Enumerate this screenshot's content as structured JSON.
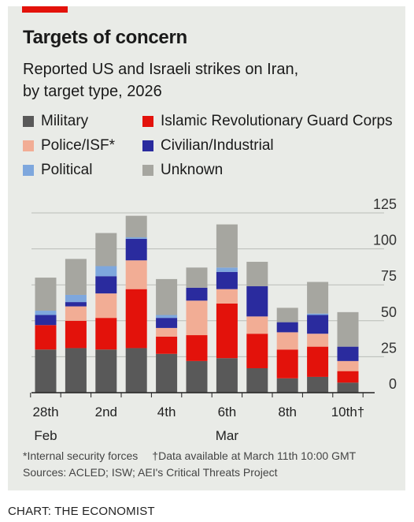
{
  "header": {
    "title": "Targets of concern",
    "subtitle_line1": "Reported US and Israeli strikes on Iran,",
    "subtitle_line2": "by target type, 2026"
  },
  "colors": {
    "Military": "#595959",
    "Islamic Revolutionary Guard Corps": "#e3120b",
    "Police/ISF*": "#f2ad95",
    "Civilian/Industrial": "#2a2b9e",
    "Political": "#7ea7dd",
    "Unknown": "#a6a6a0",
    "background": "#e9ebe7",
    "accent": "#e3120b"
  },
  "legend": [
    {
      "label": "Military"
    },
    {
      "label": "Islamic Revolutionary Guard Corps"
    },
    {
      "label": "Police/ISF*"
    },
    {
      "label": "Civilian/Industrial"
    },
    {
      "label": "Political"
    },
    {
      "label": "Unknown"
    }
  ],
  "chart_data": {
    "type": "bar",
    "stacked": true,
    "categories": [
      "Feb 28",
      "Mar 1",
      "Mar 2",
      "Mar 3",
      "Mar 4",
      "Mar 5",
      "Mar 6",
      "Mar 7",
      "Mar 8",
      "Mar 9",
      "Mar 10"
    ],
    "x_tick_labels": [
      {
        "index": 0,
        "label": "28th"
      },
      {
        "index": 2,
        "label": "2nd"
      },
      {
        "index": 4,
        "label": "4th"
      },
      {
        "index": 6,
        "label": "6th"
      },
      {
        "index": 8,
        "label": "8th"
      },
      {
        "index": 10,
        "label": "10th†"
      }
    ],
    "month_labels": [
      {
        "index": 0,
        "label": "Feb"
      },
      {
        "index": 6,
        "label": "Mar"
      }
    ],
    "y_ticks": [
      0,
      25,
      50,
      75,
      100,
      125
    ],
    "ylim": [
      0,
      125
    ],
    "series": [
      {
        "name": "Military",
        "values": [
          30,
          31,
          30,
          31,
          27,
          22,
          24,
          17,
          10,
          11,
          7
        ]
      },
      {
        "name": "Islamic Revolutionary Guard Corps",
        "values": [
          17,
          19,
          22,
          41,
          12,
          18,
          38,
          24,
          20,
          21,
          8
        ]
      },
      {
        "name": "Police/ISF*",
        "values": [
          0,
          10,
          17,
          20,
          6,
          24,
          10,
          12,
          12,
          9,
          7
        ]
      },
      {
        "name": "Civilian/Industrial",
        "values": [
          7,
          3,
          12,
          15,
          7,
          9,
          12,
          21,
          7,
          13,
          10
        ]
      },
      {
        "name": "Political",
        "values": [
          3,
          5,
          7,
          1,
          2,
          0,
          3,
          0,
          0,
          1,
          0
        ]
      },
      {
        "name": "Unknown",
        "values": [
          23,
          25,
          23,
          15,
          25,
          14,
          30,
          17,
          10,
          22,
          24
        ]
      }
    ]
  },
  "footnotes": {
    "note1": "*Internal security forces",
    "note2": "†Data available at March 11th 10:00 GMT",
    "sources": "Sources: ACLED; ISW; AEI's Critical Threats Project"
  },
  "credit": "CHART: THE ECONOMIST"
}
